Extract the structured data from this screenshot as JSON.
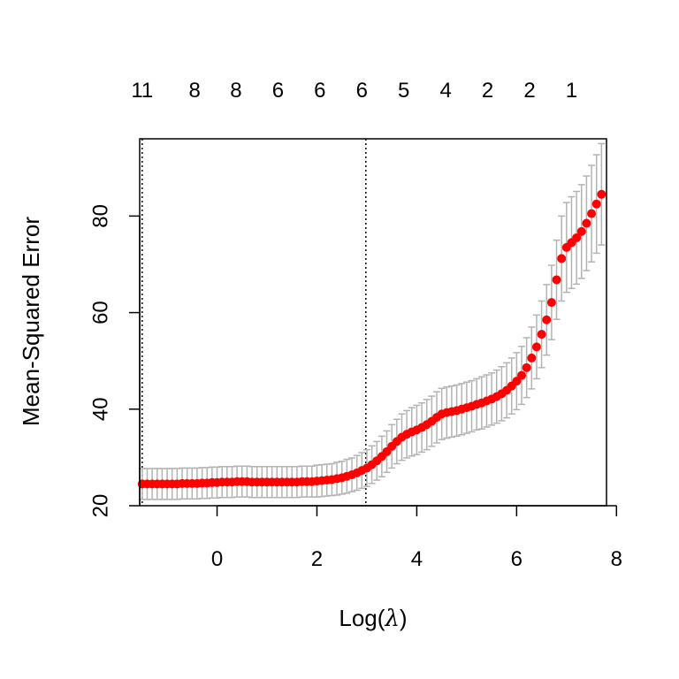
{
  "chart_data": {
    "type": "scatter",
    "title": "",
    "xlabel": "Log(",
    "xlabel_symbol": "λ",
    "xlabel_suffix": ")",
    "ylabel": "Mean-Squared Error",
    "xlim": [
      -1.55,
      7.8
    ],
    "ylim": [
      20,
      96
    ],
    "x_ticks": [
      0,
      2,
      4,
      6,
      8
    ],
    "x_tick_labels": [
      "0",
      "2",
      "4",
      "6",
      "8"
    ],
    "y_ticks": [
      20,
      40,
      60,
      80
    ],
    "y_tick_labels": [
      "20",
      "40",
      "60",
      "80"
    ],
    "top_axis_labels": [
      {
        "x": -1.5,
        "label": "11"
      },
      {
        "x": -0.45,
        "label": "8"
      },
      {
        "x": 0.38,
        "label": "8"
      },
      {
        "x": 1.22,
        "label": "6"
      },
      {
        "x": 2.06,
        "label": "6"
      },
      {
        "x": 2.9,
        "label": "6"
      },
      {
        "x": 3.74,
        "label": "5"
      },
      {
        "x": 4.58,
        "label": "4"
      },
      {
        "x": 5.42,
        "label": "2"
      },
      {
        "x": 6.26,
        "label": "2"
      },
      {
        "x": 7.1,
        "label": "1"
      }
    ],
    "vlines": [
      -1.5,
      2.98
    ],
    "point_color": "#ff0000",
    "errorbar_color": "#b3b3b3",
    "series": [
      {
        "x": [
          -1.5,
          -1.4,
          -1.3,
          -1.2,
          -1.1,
          -1.0,
          -0.9,
          -0.8,
          -0.7,
          -0.6,
          -0.5,
          -0.4,
          -0.3,
          -0.2,
          -0.1,
          0.0,
          0.1,
          0.2,
          0.3,
          0.4,
          0.5,
          0.6,
          0.7,
          0.8,
          0.9,
          1.0,
          1.1,
          1.2,
          1.3,
          1.4,
          1.5,
          1.6,
          1.7,
          1.8,
          1.9,
          2.0,
          2.1,
          2.2,
          2.3,
          2.4,
          2.5,
          2.6,
          2.7,
          2.8,
          2.9,
          3.0,
          3.1,
          3.2,
          3.3,
          3.4,
          3.5,
          3.6,
          3.7,
          3.8,
          3.9,
          4.0,
          4.1,
          4.2,
          4.3,
          4.4,
          4.5,
          4.6,
          4.7,
          4.8,
          4.9,
          5.0,
          5.1,
          5.2,
          5.3,
          5.4,
          5.5,
          5.6,
          5.7,
          5.8,
          5.9,
          6.0,
          6.1,
          6.2,
          6.3,
          6.4,
          6.5,
          6.6,
          6.7,
          6.8,
          6.9,
          7.0,
          7.1,
          7.2,
          7.3,
          7.4,
          7.5,
          7.6,
          7.7
        ],
        "y": [
          24.5,
          24.5,
          24.5,
          24.5,
          24.5,
          24.5,
          24.5,
          24.5,
          24.6,
          24.6,
          24.6,
          24.6,
          24.7,
          24.7,
          24.8,
          24.8,
          24.9,
          24.9,
          24.9,
          25.0,
          25.0,
          25.0,
          24.9,
          24.9,
          24.9,
          24.9,
          24.9,
          24.9,
          24.9,
          24.9,
          24.9,
          24.9,
          25.0,
          25.0,
          25.0,
          25.1,
          25.2,
          25.3,
          25.4,
          25.6,
          25.8,
          26.1,
          26.4,
          26.8,
          27.3,
          27.8,
          28.5,
          29.3,
          30.2,
          31.2,
          32.3,
          33.3,
          34.2,
          34.8,
          35.3,
          35.7,
          36.2,
          36.8,
          37.5,
          38.3,
          39.0,
          39.3,
          39.5,
          39.7,
          40.0,
          40.3,
          40.6,
          41.0,
          41.3,
          41.7,
          42.1,
          42.6,
          43.2,
          43.9,
          44.8,
          45.8,
          47.0,
          48.6,
          50.6,
          52.9,
          55.5,
          58.5,
          62.1,
          66.8,
          71.2,
          73.5,
          74.5,
          75.5,
          76.8,
          78.5,
          80.5,
          82.5,
          84.5
        ],
        "err": [
          3.2,
          3.2,
          3.2,
          3.2,
          3.2,
          3.2,
          3.2,
          3.2,
          3.2,
          3.2,
          3.2,
          3.2,
          3.2,
          3.2,
          3.2,
          3.2,
          3.2,
          3.2,
          3.2,
          3.2,
          3.2,
          3.2,
          3.2,
          3.2,
          3.2,
          3.2,
          3.2,
          3.2,
          3.2,
          3.2,
          3.2,
          3.2,
          3.2,
          3.2,
          3.2,
          3.3,
          3.3,
          3.3,
          3.3,
          3.4,
          3.4,
          3.5,
          3.5,
          3.6,
          3.7,
          3.8,
          3.9,
          4.0,
          4.2,
          4.3,
          4.5,
          4.6,
          4.8,
          4.9,
          5.0,
          5.1,
          5.1,
          5.2,
          5.2,
          5.3,
          5.3,
          5.3,
          5.3,
          5.3,
          5.3,
          5.3,
          5.3,
          5.3,
          5.4,
          5.4,
          5.4,
          5.5,
          5.6,
          5.7,
          5.8,
          5.9,
          6.0,
          6.2,
          6.4,
          6.6,
          6.9,
          7.3,
          7.7,
          8.2,
          8.8,
          9.3,
          9.5,
          9.6,
          9.7,
          9.8,
          10.0,
          10.2,
          10.5
        ]
      }
    ],
    "grid": false,
    "legend": "none"
  }
}
